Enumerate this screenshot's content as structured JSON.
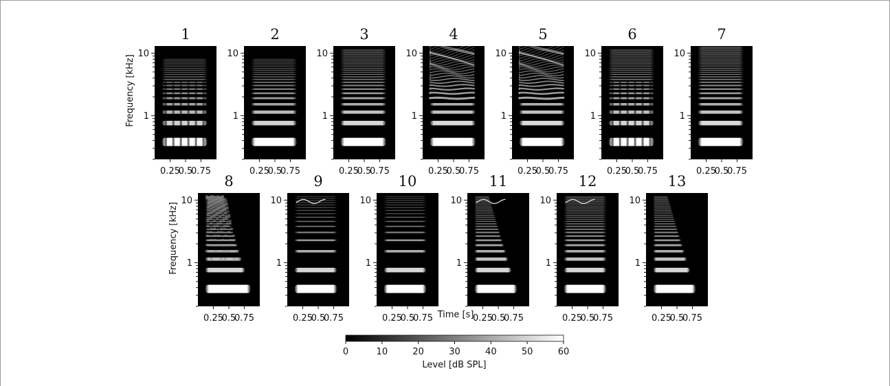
{
  "chart_data": {
    "type": "heatmap",
    "description_kind": "grid of spectrograms",
    "panels": [
      {
        "title": "1",
        "row": 1,
        "f0_khz": 0.38,
        "harmonic_fade_khz": 7,
        "pattern": "amplitude-modulated harmonics",
        "t_end": 0.85
      },
      {
        "title": "2",
        "row": 1,
        "f0_khz": 0.38,
        "harmonic_fade_khz": 7,
        "pattern": "steady harmonics",
        "t_end": 0.85
      },
      {
        "title": "3",
        "row": 1,
        "f0_khz": 0.38,
        "harmonic_fade_khz": 10,
        "pattern": "steady harmonics",
        "t_end": 0.85
      },
      {
        "title": "4",
        "row": 1,
        "f0_khz": 0.38,
        "harmonic_fade_khz": 11,
        "pattern": "frequency-modulated harmonics",
        "t_end": 0.85
      },
      {
        "title": "5",
        "row": 1,
        "f0_khz": 0.38,
        "harmonic_fade_khz": 11,
        "pattern": "frequency-modulated harmonics",
        "t_end": 0.85
      },
      {
        "title": "6",
        "row": 1,
        "f0_khz": 0.38,
        "harmonic_fade_khz": 10,
        "pattern": "amplitude-modulated harmonics",
        "t_end": 0.85
      },
      {
        "title": "7",
        "row": 1,
        "f0_khz": 0.38,
        "harmonic_fade_khz": 11,
        "pattern": "steady harmonics",
        "t_end": 0.85
      },
      {
        "title": "8",
        "row": 2,
        "f0_khz": 0.38,
        "harmonic_fade_khz": 10,
        "pattern": "noisy harmonics, shortening with frequency",
        "t_end": 0.85
      },
      {
        "title": "9",
        "row": 2,
        "f0_khz": 0.38,
        "harmonic_fade_khz": 10,
        "pattern": "sparse harmonics with high-frequency FM tone",
        "t_end": 0.8
      },
      {
        "title": "10",
        "row": 2,
        "f0_khz": 0.38,
        "harmonic_fade_khz": 10,
        "pattern": "sparse steady harmonics",
        "t_end": 0.8
      },
      {
        "title": "11",
        "row": 2,
        "f0_khz": 0.38,
        "harmonic_fade_khz": 10,
        "pattern": "harmonics shortening with frequency, high-frequency FM tone",
        "t_end": 0.8
      },
      {
        "title": "12",
        "row": 2,
        "f0_khz": 0.38,
        "harmonic_fade_khz": 10,
        "pattern": "harmonics with high-frequency sweep",
        "t_end": 0.8
      },
      {
        "title": "13",
        "row": 2,
        "f0_khz": 0.38,
        "harmonic_fade_khz": 10,
        "pattern": "harmonics shortening with frequency",
        "t_end": 0.8
      }
    ],
    "x_ticks": [
      "0.25",
      "0.5",
      "0.75"
    ],
    "x_tick_values": [
      0.25,
      0.5,
      0.75
    ],
    "xlim": [
      0,
      1
    ],
    "y_ticks": [
      "1",
      "10"
    ],
    "y_tick_values": [
      1,
      10
    ],
    "ylim_khz": [
      0.2,
      13
    ],
    "y_scale": "log",
    "ylabel": "Frequency [kHz]",
    "xlabel": "Time [s]",
    "colorbar": {
      "label": "Level [dB SPL]",
      "ticks": [
        "0",
        "10",
        "20",
        "30",
        "40",
        "50",
        "60"
      ],
      "tick_values": [
        0,
        10,
        20,
        30,
        40,
        50,
        60
      ],
      "range": [
        0,
        60
      ],
      "colormap": "grayscale",
      "low_color": "#000000",
      "high_color": "#ffffff"
    }
  }
}
